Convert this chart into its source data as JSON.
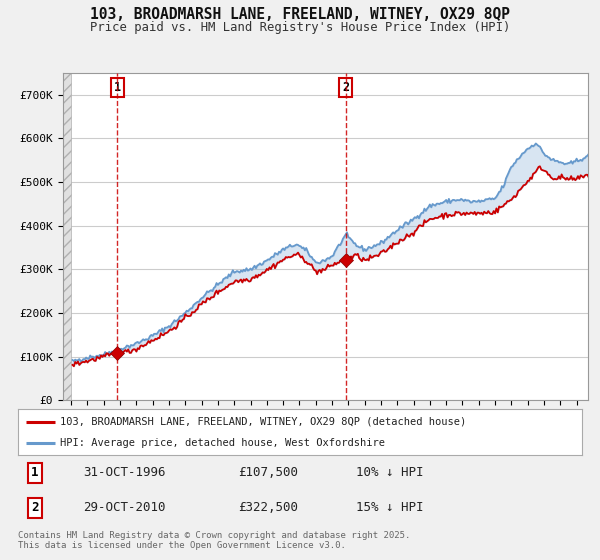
{
  "title_line1": "103, BROADMARSH LANE, FREELAND, WITNEY, OX29 8QP",
  "title_line2": "Price paid vs. HM Land Registry's House Price Index (HPI)",
  "background_color": "#f0f0f0",
  "plot_bg_color": "#ffffff",
  "hpi_color": "#6699cc",
  "price_color": "#cc0000",
  "vline1_x": 1996.83,
  "vline2_x": 2010.83,
  "marker1_y": 107500,
  "marker2_y": 322500,
  "xmin": 1993.5,
  "xmax": 2025.7,
  "ymin": 0,
  "ymax": 750000,
  "legend_label1": "103, BROADMARSH LANE, FREELAND, WITNEY, OX29 8QP (detached house)",
  "legend_label2": "HPI: Average price, detached house, West Oxfordshire",
  "annot1_label": "1",
  "annot2_label": "2",
  "table_rows": [
    {
      "num": "1",
      "date": "31-OCT-1996",
      "price": "£107,500",
      "note": "10% ↓ HPI"
    },
    {
      "num": "2",
      "date": "29-OCT-2010",
      "price": "£322,500",
      "note": "15% ↓ HPI"
    }
  ],
  "footer": "Contains HM Land Registry data © Crown copyright and database right 2025.\nThis data is licensed under the Open Government Licence v3.0.",
  "yticks": [
    0,
    100000,
    200000,
    300000,
    400000,
    500000,
    600000,
    700000
  ],
  "ytick_labels": [
    "£0",
    "£100K",
    "£200K",
    "£300K",
    "£400K",
    "£500K",
    "£600K",
    "£700K"
  ],
  "hpi_anchors_x": [
    1993.5,
    1994.0,
    1995.0,
    1996.0,
    1997.0,
    1998.0,
    1999.0,
    2000.0,
    2001.0,
    2002.0,
    2003.0,
    2004.0,
    2005.0,
    2006.0,
    2007.0,
    2007.8,
    2008.5,
    2009.0,
    2009.5,
    2010.0,
    2010.83,
    2011.5,
    2012.0,
    2013.0,
    2014.0,
    2015.0,
    2016.0,
    2017.0,
    2017.8,
    2018.5,
    2019.0,
    2020.0,
    2020.5,
    2021.0,
    2021.8,
    2022.5,
    2023.0,
    2023.5,
    2024.0,
    2024.5,
    2025.0,
    2025.7
  ],
  "hpi_anchors_y": [
    88000,
    90000,
    98000,
    105000,
    118000,
    130000,
    148000,
    170000,
    200000,
    235000,
    265000,
    295000,
    300000,
    320000,
    345000,
    358000,
    340000,
    315000,
    320000,
    330000,
    378000,
    355000,
    345000,
    360000,
    390000,
    415000,
    445000,
    455000,
    460000,
    455000,
    455000,
    462000,
    490000,
    535000,
    570000,
    590000,
    565000,
    550000,
    545000,
    540000,
    548000,
    560000
  ],
  "price_anchors_x": [
    1993.5,
    1994.0,
    1995.0,
    1996.0,
    1996.83,
    1997.5,
    1998.0,
    1999.0,
    2000.0,
    2001.0,
    2002.0,
    2003.0,
    2004.0,
    2005.0,
    2006.0,
    2007.0,
    2007.8,
    2008.5,
    2009.0,
    2009.5,
    2010.0,
    2010.83,
    2011.5,
    2012.0,
    2013.0,
    2014.0,
    2015.0,
    2016.0,
    2017.0,
    2018.0,
    2019.0,
    2020.0,
    2021.0,
    2022.0,
    2022.8,
    2023.5,
    2024.0,
    2024.8,
    2025.7
  ],
  "price_anchors_y": [
    80000,
    82000,
    90000,
    100000,
    107500,
    112000,
    118000,
    138000,
    158000,
    188000,
    220000,
    248000,
    272000,
    278000,
    298000,
    322000,
    335000,
    318000,
    295000,
    298000,
    310000,
    322500,
    332000,
    320000,
    335000,
    362000,
    385000,
    415000,
    425000,
    428000,
    428000,
    432000,
    460000,
    502000,
    535000,
    510000,
    510000,
    505000,
    515000
  ]
}
